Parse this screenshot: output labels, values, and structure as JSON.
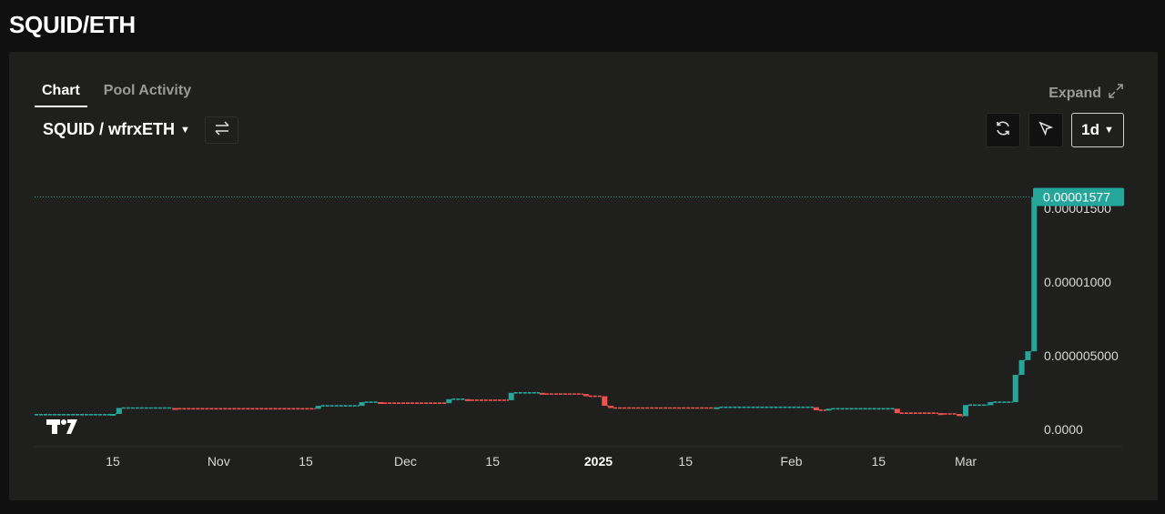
{
  "page": {
    "title": "SQUID/ETH"
  },
  "tabs": [
    {
      "label": "Chart",
      "active": true
    },
    {
      "label": "Pool Activity",
      "active": false
    }
  ],
  "expand": {
    "label": "Expand",
    "icon": "expand-icon"
  },
  "pair_selector": {
    "label": "SQUID / wfrxETH",
    "icon": "caret-down-icon"
  },
  "swap_button": {
    "icon": "swap-arrows-icon"
  },
  "toolbar": {
    "refresh_icon": "refresh-icon",
    "cursor_icon": "cursor-icon",
    "interval_label": "1d"
  },
  "watermark": {
    "logo": "TradingView"
  },
  "colors": {
    "up": "#26a69a",
    "down": "#ef5350",
    "price_badge": "#26a69a",
    "background": "#1f1f1d",
    "page_background": "#0f0f0f"
  },
  "chart_data": {
    "type": "candlestick",
    "interval": "1d",
    "last_price_label": "0.00001577",
    "last_price": 1.577e-05,
    "y_ticks": [
      {
        "value": 0.0,
        "label": "0.0000"
      },
      {
        "value": 5e-06,
        "label": "0.000005000"
      },
      {
        "value": 1e-05,
        "label": "0.00001000"
      },
      {
        "value": 1.5e-05,
        "label": "0.00001500"
      }
    ],
    "x_ticks": [
      {
        "date": "2024-10-15",
        "label": "15",
        "bold": false
      },
      {
        "date": "2024-11-01",
        "label": "Nov",
        "bold": false
      },
      {
        "date": "2024-11-15",
        "label": "15",
        "bold": false
      },
      {
        "date": "2024-12-01",
        "label": "Dec",
        "bold": false
      },
      {
        "date": "2024-12-15",
        "label": "15",
        "bold": false
      },
      {
        "date": "2025-01-01",
        "label": "2025",
        "bold": true
      },
      {
        "date": "2025-01-15",
        "label": "15",
        "bold": false
      },
      {
        "date": "2025-02-01",
        "label": "Feb",
        "bold": false
      },
      {
        "date": "2025-02-15",
        "label": "15",
        "bold": false
      },
      {
        "date": "2025-03-01",
        "label": "Mar",
        "bold": false
      }
    ],
    "candles": [
      {
        "date": "2024-10-15",
        "open": 1e-06,
        "close": 1.05e-06
      },
      {
        "date": "2024-10-16",
        "open": 1.05e-06,
        "close": 1.45e-06
      },
      {
        "date": "2024-10-25",
        "open": 1.45e-06,
        "close": 1.4e-06
      },
      {
        "date": "2024-11-17",
        "open": 1.4e-06,
        "close": 1.6e-06
      },
      {
        "date": "2024-11-24",
        "open": 1.6e-06,
        "close": 1.85e-06
      },
      {
        "date": "2024-11-27",
        "open": 1.85e-06,
        "close": 1.78e-06
      },
      {
        "date": "2024-12-08",
        "open": 1.78e-06,
        "close": 2.05e-06
      },
      {
        "date": "2024-12-11",
        "open": 2.05e-06,
        "close": 1.98e-06
      },
      {
        "date": "2024-12-18",
        "open": 1.98e-06,
        "close": 2.48e-06
      },
      {
        "date": "2024-12-23",
        "open": 2.48e-06,
        "close": 2.4e-06
      },
      {
        "date": "2024-12-30",
        "open": 2.4e-06,
        "close": 2.25e-06
      },
      {
        "date": "2025-01-02",
        "open": 2.25e-06,
        "close": 1.6e-06
      },
      {
        "date": "2025-01-03",
        "open": 1.6e-06,
        "close": 1.45e-06
      },
      {
        "date": "2025-01-20",
        "open": 1.45e-06,
        "close": 1.5e-06
      },
      {
        "date": "2025-02-05",
        "open": 1.5e-06,
        "close": 1.3e-06
      },
      {
        "date": "2025-02-07",
        "open": 1.3e-06,
        "close": 1.4e-06
      },
      {
        "date": "2025-02-18",
        "open": 1.4e-06,
        "close": 1.1e-06
      },
      {
        "date": "2025-02-25",
        "open": 1.1e-06,
        "close": 1.05e-06
      },
      {
        "date": "2025-02-28",
        "open": 1.05e-06,
        "close": 9e-07
      },
      {
        "date": "2025-03-01",
        "open": 9e-07,
        "close": 1.65e-06
      },
      {
        "date": "2025-03-05",
        "open": 1.65e-06,
        "close": 1.85e-06
      },
      {
        "date": "2025-03-09",
        "open": 1.85e-06,
        "close": 3.7e-06
      },
      {
        "date": "2025-03-10",
        "open": 3.7e-06,
        "close": 4.7e-06
      },
      {
        "date": "2025-03-11",
        "open": 4.7e-06,
        "close": 5.3e-06
      },
      {
        "date": "2025-03-12",
        "open": 5.3e-06,
        "close": 1.577e-05
      }
    ]
  }
}
